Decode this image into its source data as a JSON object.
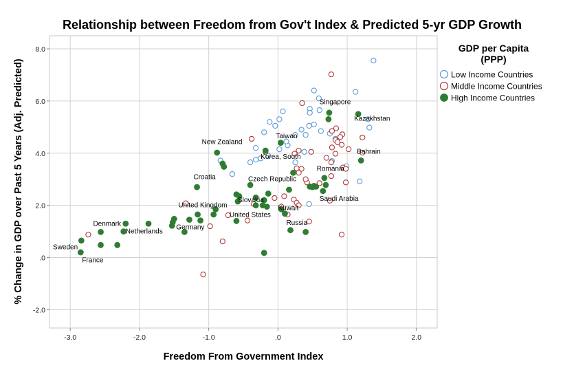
{
  "chart_data": {
    "type": "scatter",
    "title": "Relationship between Freedom from Gov't Index & Predicted 5-yr GDP Growth",
    "xlabel": "Freedom From Government Index",
    "ylabel": "% Change in GDP over Past 5 Years (Adj. Predicted)",
    "xlim": [
      -3.3,
      2.3
    ],
    "ylim": [
      -2.7,
      8.5
    ],
    "xticks": [
      -3.0,
      -2.0,
      -1.0,
      0.0,
      1.0,
      2.0
    ],
    "xtick_labels": [
      "-3.0",
      "-2.0",
      "-1.0",
      ".0",
      "1.0",
      "2.0"
    ],
    "yticks": [
      -2.0,
      0.0,
      2.0,
      4.0,
      6.0,
      8.0
    ],
    "ytick_labels": [
      "-2.0",
      ".0",
      "2.0",
      "4.0",
      "6.0",
      "8.0"
    ],
    "grid": true,
    "legend": {
      "title": "GDP per Capita (PPP)",
      "placement": "right"
    },
    "series": [
      {
        "name": "Low Income Countries",
        "marker": "open-circle",
        "color": "#5b9bd5",
        "points": [
          [
            1.38,
            7.55
          ],
          [
            0.52,
            6.4
          ],
          [
            1.12,
            6.35
          ],
          [
            0.59,
            6.1
          ],
          [
            0.46,
            5.7
          ],
          [
            0.6,
            5.65
          ],
          [
            0.46,
            5.55
          ],
          [
            0.07,
            5.6
          ],
          [
            0.52,
            5.1
          ],
          [
            0.02,
            5.3
          ],
          [
            -0.12,
            5.2
          ],
          [
            -0.04,
            5.05
          ],
          [
            0.34,
            4.9
          ],
          [
            0.62,
            4.85
          ],
          [
            0.45,
            5.05
          ],
          [
            0.75,
            4.75
          ],
          [
            1.3,
            5.3
          ],
          [
            1.32,
            4.98
          ],
          [
            -0.2,
            4.8
          ],
          [
            0.4,
            4.7
          ],
          [
            0.25,
            4.7
          ],
          [
            0.14,
            4.3
          ],
          [
            0.02,
            4.15
          ],
          [
            0.12,
            4.45
          ],
          [
            -0.32,
            4.2
          ],
          [
            -0.25,
            3.8
          ],
          [
            -0.32,
            3.75
          ],
          [
            -0.14,
            3.9
          ],
          [
            0.25,
            3.65
          ],
          [
            -0.4,
            3.65
          ],
          [
            0.78,
            3.7
          ],
          [
            -0.83,
            3.72
          ],
          [
            -0.66,
            3.2
          ],
          [
            0.99,
            3.5
          ],
          [
            1.18,
            2.92
          ],
          [
            0.45,
            2.05
          ],
          [
            0.83,
            4.55
          ],
          [
            0.38,
            4.05
          ]
        ]
      },
      {
        "name": "Middle Income Countries",
        "marker": "open-circle",
        "color": "#b03a3a",
        "points": [
          [
            0.77,
            7.02
          ],
          [
            0.35,
            5.92
          ],
          [
            0.84,
            4.95
          ],
          [
            0.78,
            4.85
          ],
          [
            0.93,
            4.72
          ],
          [
            0.9,
            4.62
          ],
          [
            0.83,
            4.5
          ],
          [
            0.86,
            4.42
          ],
          [
            0.92,
            4.32
          ],
          [
            0.78,
            4.22
          ],
          [
            1.02,
            4.15
          ],
          [
            1.22,
            4.6
          ],
          [
            1.22,
            4.02
          ],
          [
            0.48,
            4.05
          ],
          [
            0.3,
            4.1
          ],
          [
            0.24,
            3.98
          ],
          [
            0.83,
            3.98
          ],
          [
            -0.18,
            4.05
          ],
          [
            -0.38,
            4.55
          ],
          [
            0.7,
            3.82
          ],
          [
            0.77,
            3.65
          ],
          [
            0.94,
            3.45
          ],
          [
            0.98,
            3.4
          ],
          [
            0.27,
            3.42
          ],
          [
            0.34,
            3.4
          ],
          [
            0.3,
            3.25
          ],
          [
            0.6,
            2.85
          ],
          [
            0.52,
            2.75
          ],
          [
            0.98,
            2.88
          ],
          [
            0.77,
            3.12
          ],
          [
            0.42,
            2.88
          ],
          [
            0.75,
            2.18
          ],
          [
            0.09,
            2.35
          ],
          [
            0.23,
            2.22
          ],
          [
            0.27,
            2.1
          ],
          [
            0.3,
            2.0
          ],
          [
            -0.05,
            2.28
          ],
          [
            0.14,
            1.65
          ],
          [
            0.45,
            1.38
          ],
          [
            -0.44,
            1.42
          ],
          [
            -0.72,
            1.62
          ],
          [
            -0.98,
            1.2
          ],
          [
            -1.33,
            2.08
          ],
          [
            -2.74,
            0.88
          ],
          [
            -0.8,
            0.62
          ],
          [
            -1.08,
            -0.65
          ],
          [
            0.92,
            0.88
          ],
          [
            0.52,
            2.72
          ],
          [
            0.4,
            3.0
          ],
          [
            0.05,
            1.95
          ],
          [
            -0.35,
            2.05
          ]
        ]
      },
      {
        "name": "High Income Countries",
        "marker": "filled-circle",
        "color": "#2e7d32",
        "points": [
          [
            0.74,
            5.55
          ],
          [
            0.73,
            5.3
          ],
          [
            1.16,
            5.5
          ],
          [
            1.2,
            3.72
          ],
          [
            0.04,
            4.4
          ],
          [
            -0.88,
            4.02
          ],
          [
            -0.18,
            4.1
          ],
          [
            -0.8,
            3.6
          ],
          [
            -0.78,
            3.48
          ],
          [
            0.22,
            3.25
          ],
          [
            -1.17,
            2.7
          ],
          [
            0.67,
            3.05
          ],
          [
            0.69,
            2.78
          ],
          [
            0.55,
            2.72
          ],
          [
            0.65,
            2.55
          ],
          [
            0.46,
            2.72
          ],
          [
            0.5,
            2.7
          ],
          [
            0.16,
            2.6
          ],
          [
            -0.4,
            2.78
          ],
          [
            -0.6,
            2.42
          ],
          [
            -0.56,
            2.35
          ],
          [
            -0.14,
            2.45
          ],
          [
            -0.2,
            2.2
          ],
          [
            -0.58,
            2.15
          ],
          [
            -0.32,
            2.0
          ],
          [
            -0.16,
            1.95
          ],
          [
            -0.32,
            2.3
          ],
          [
            0.05,
            1.85
          ],
          [
            -0.9,
            1.85
          ],
          [
            -0.93,
            1.65
          ],
          [
            -1.16,
            1.65
          ],
          [
            -1.12,
            1.42
          ],
          [
            -1.28,
            1.45
          ],
          [
            -1.5,
            1.48
          ],
          [
            -1.52,
            1.35
          ],
          [
            -1.53,
            1.22
          ],
          [
            -1.35,
            0.98
          ],
          [
            -1.87,
            1.3
          ],
          [
            -2.2,
            1.3
          ],
          [
            -2.23,
            1.0
          ],
          [
            -2.56,
            0.98
          ],
          [
            -2.56,
            0.48
          ],
          [
            -2.32,
            0.48
          ],
          [
            -2.84,
            0.65
          ],
          [
            -2.85,
            0.2
          ],
          [
            -0.6,
            1.4
          ],
          [
            0.1,
            1.68
          ],
          [
            0.18,
            1.05
          ],
          [
            0.4,
            0.98
          ],
          [
            -0.2,
            0.18
          ],
          [
            -0.22,
            2.0
          ]
        ]
      }
    ],
    "annotations": [
      {
        "text": "Singapore",
        "x": 0.6,
        "y": 5.88
      },
      {
        "text": "Kazakhstan",
        "x": 1.1,
        "y": 5.25
      },
      {
        "text": "Taiwan",
        "x": -0.03,
        "y": 4.58
      },
      {
        "text": "New Zealand",
        "x": -1.1,
        "y": 4.35
      },
      {
        "text": "Bahrain",
        "x": 1.14,
        "y": 3.98
      },
      {
        "text": "Korea, South",
        "x": -0.25,
        "y": 3.78
      },
      {
        "text": "Croatia",
        "x": -1.22,
        "y": 3.0
      },
      {
        "text": "Czech Republic",
        "x": -0.43,
        "y": 2.92
      },
      {
        "text": "Romania",
        "x": 0.56,
        "y": 3.32
      },
      {
        "text": "Saudi Arabia",
        "x": 0.6,
        "y": 2.18
      },
      {
        "text": "Slovakia",
        "x": -0.58,
        "y": 2.12
      },
      {
        "text": "Kuwait",
        "x": 0.0,
        "y": 1.82
      },
      {
        "text": "United Kingdom",
        "x": -1.44,
        "y": 1.92
      },
      {
        "text": "United States",
        "x": -0.7,
        "y": 1.55
      },
      {
        "text": "Russia",
        "x": 0.12,
        "y": 1.25
      },
      {
        "text": "Denmark",
        "x": -2.67,
        "y": 1.22
      },
      {
        "text": "Germany",
        "x": -1.47,
        "y": 1.08
      },
      {
        "text": "Netherlands",
        "x": -2.2,
        "y": 0.92
      },
      {
        "text": "Sweden",
        "x": -3.25,
        "y": 0.32
      },
      {
        "text": "France",
        "x": -2.83,
        "y": -0.18
      }
    ]
  }
}
